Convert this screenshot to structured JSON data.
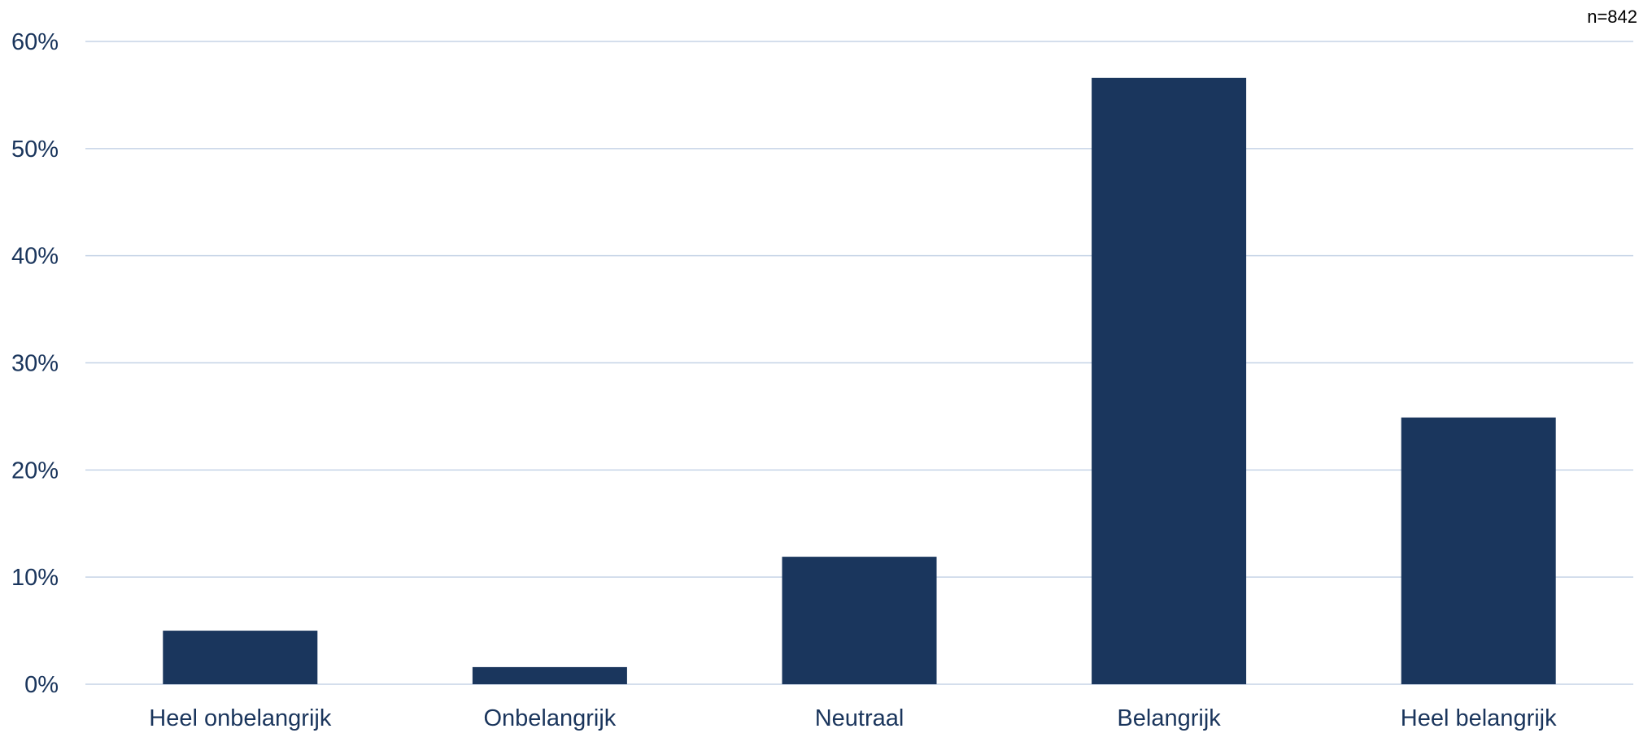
{
  "note": "n=842",
  "chart_data": {
    "type": "bar",
    "title": "",
    "xlabel": "",
    "ylabel": "",
    "categories": [
      "Heel onbelangrijk",
      "Onbelangrijk",
      "Neutraal",
      "Belangrijk",
      "Heel belangrijk"
    ],
    "values": [
      5.0,
      1.6,
      11.9,
      56.6,
      24.9
    ],
    "unit": "%",
    "ylim": [
      0,
      60
    ],
    "yticks": [
      0,
      10,
      20,
      30,
      40,
      50,
      60
    ],
    "ytick_labels": [
      "0%",
      "10%",
      "20%",
      "30%",
      "40%",
      "50%",
      "60%"
    ],
    "grid": true,
    "legend": "none",
    "colors": {
      "bar": "#1a365d",
      "grid": "#c5d3e6",
      "text": "#1a355c"
    }
  }
}
